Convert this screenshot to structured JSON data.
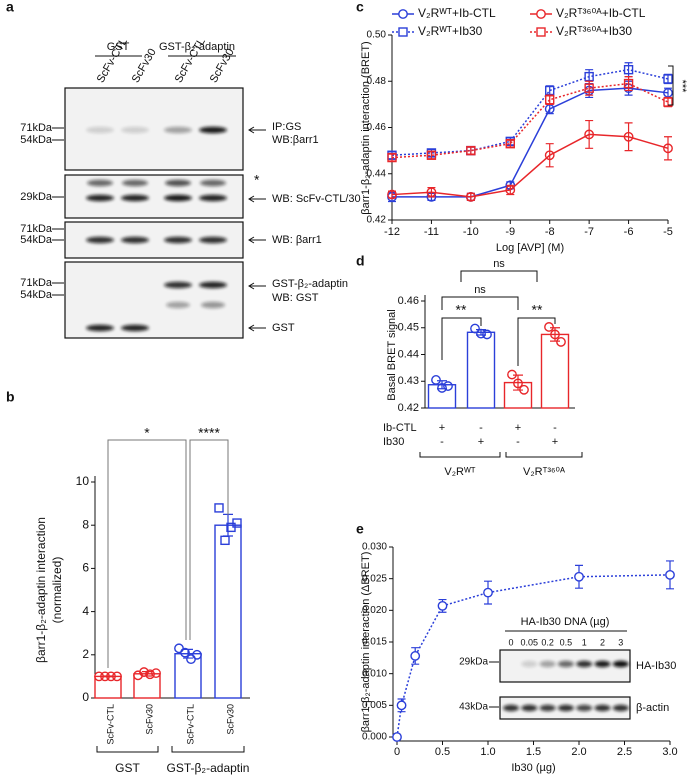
{
  "blot": {
    "panel": "a",
    "groups": [
      "GST",
      "GST-β₂-adaptin"
    ],
    "lanes": [
      "ScFv-CTL",
      "ScFv30",
      "ScFv-CTL",
      "ScFv30"
    ],
    "blot1": {
      "markers": [
        "71kDa",
        "54kDa"
      ],
      "labels": [
        "IP:GS",
        "WB:βarr1"
      ]
    },
    "blot2": {
      "markers": [
        "29kDa"
      ],
      "star": "*",
      "labels": [
        "WB: ScFv-CTL/30"
      ]
    },
    "blot3": {
      "markers": [
        "71kDa",
        "54kDa"
      ],
      "labels": [
        "WB: βarr1"
      ]
    },
    "blot4": {
      "markers": [
        "71kDa",
        "54kDa"
      ],
      "labels": [
        "GST-β₂-adaptin",
        "WB: GST",
        "GST"
      ]
    }
  },
  "chart_data": [
    {
      "panel": "b",
      "type": "bar",
      "y_label": [
        "βarr1-β₂-adaptin interaction",
        "(normalized)"
      ],
      "categories": [
        "ScFv-CTL",
        "ScFv30",
        "ScFv-CTL",
        "ScFv30"
      ],
      "values": [
        1.0,
        1.12,
        2.05,
        8.0
      ],
      "errors": [
        0.02,
        0.1,
        0.2,
        0.5
      ],
      "points": [
        [
          1.0,
          1.0,
          1.0,
          1.0
        ],
        [
          1.05,
          1.2,
          1.1,
          1.15
        ],
        [
          2.3,
          2.1,
          1.8,
          2.0
        ],
        [
          8.8,
          7.3,
          7.9,
          8.1
        ]
      ],
      "colors": [
        "#e8262a",
        "#e8262a",
        "#2b3fd9",
        "#2b3fd9"
      ],
      "groups": [
        "GST",
        "GST-β₂-adaptin"
      ],
      "significance": [
        "*",
        "****"
      ],
      "ylim": [
        0,
        10
      ],
      "yticks": [
        0,
        2,
        4,
        6,
        8,
        10
      ]
    },
    {
      "panel": "c",
      "type": "line",
      "y_label": "βarr1-β₂-adaptin interaction (BRET)",
      "x_label": "Log [AVP] (M)",
      "x": [
        -12,
        -11,
        -10,
        -9,
        -8,
        -7,
        -6,
        -5
      ],
      "series": [
        {
          "name": "V₂Rᵂᵀ+Ib-CTL",
          "color": "#2b3fd9",
          "marker": "circle",
          "dashed": false,
          "values": [
            0.43,
            0.43,
            0.43,
            0.435,
            0.468,
            0.476,
            0.477,
            0.475
          ],
          "errors": [
            0.002,
            0.0015,
            0.0015,
            0.0015,
            0.002,
            0.003,
            0.003,
            0.002
          ]
        },
        {
          "name": "V₂Rᵂᵀ+Ib30",
          "color": "#2b3fd9",
          "marker": "square",
          "dashed": true,
          "values": [
            0.448,
            0.449,
            0.45,
            0.454,
            0.476,
            0.482,
            0.485,
            0.481
          ],
          "errors": [
            0.0015,
            0.0015,
            0.0015,
            0.0015,
            0.002,
            0.003,
            0.003,
            0.002
          ]
        },
        {
          "name": "V₂Rᵀ³⁶⁰ᴬ+Ib-CTL",
          "color": "#e8262a",
          "marker": "circle",
          "dashed": false,
          "values": [
            0.431,
            0.432,
            0.43,
            0.433,
            0.448,
            0.457,
            0.456,
            0.451
          ],
          "errors": [
            0.0015,
            0.002,
            0.0015,
            0.002,
            0.005,
            0.006,
            0.006,
            0.005
          ]
        },
        {
          "name": "V₂Rᵀ³⁶⁰ᴬ+Ib30",
          "color": "#e8262a",
          "marker": "square",
          "dashed": true,
          "values": [
            0.447,
            0.448,
            0.45,
            0.453,
            0.472,
            0.477,
            0.479,
            0.471
          ],
          "errors": [
            0.0015,
            0.0015,
            0.0015,
            0.0015,
            0.002,
            0.003,
            0.003,
            0.002
          ]
        }
      ],
      "annotation": "***",
      "xlim": [
        -12,
        -5
      ],
      "xticks": [
        -12,
        -11,
        -10,
        -9,
        -8,
        -7,
        -6,
        -5
      ],
      "ylim": [
        0.42,
        0.5
      ],
      "yticks": [
        0.42,
        0.44,
        0.46,
        0.48,
        {
          "value": 0.5,
          "label": "0.50"
        }
      ]
    },
    {
      "panel": "d",
      "type": "bar",
      "y_label": "Basal BRET signal",
      "values": [
        0.4287,
        0.4483,
        0.4295,
        0.4475
      ],
      "errors": [
        0.0015,
        0.001,
        0.0028,
        0.0025
      ],
      "points": [
        [
          0.4305,
          0.4275,
          0.4282
        ],
        [
          0.4497,
          0.4478,
          0.4475
        ],
        [
          0.4325,
          0.4292,
          0.4268
        ],
        [
          0.4503,
          0.4475,
          0.4447
        ]
      ],
      "colors": [
        "#2b3fd9",
        "#2b3fd9",
        "#e8262a",
        "#e8262a"
      ],
      "rows": [
        {
          "label": "Ib-CTL",
          "signs": [
            "+",
            "-",
            "+",
            "-"
          ]
        },
        {
          "label": "Ib30",
          "signs": [
            "-",
            "+",
            "-",
            "+"
          ]
        }
      ],
      "groups": [
        "V₂Rᵂᵀ",
        "V₂Rᵀ³⁶⁰ᴬ"
      ],
      "significance": [
        "**",
        "**",
        "ns",
        "ns"
      ],
      "ylim": [
        0.42,
        0.46
      ],
      "yticks": [
        0.42,
        0.43,
        0.44,
        0.45,
        0.46
      ]
    },
    {
      "panel": "e",
      "type": "scatter",
      "y_label": "βarr1-β₂-adaptin interaction (ΔBRET)",
      "x_label": "Ib30 (µg)",
      "color": "#2b3fd9",
      "x": [
        0,
        0.05,
        0.2,
        0.5,
        1,
        2,
        3
      ],
      "values": [
        0.0,
        0.005,
        0.0128,
        0.0207,
        0.0228,
        0.0253,
        0.0256
      ],
      "errors": [
        0.0,
        0.001,
        0.0013,
        0.001,
        0.0018,
        0.0018,
        0.0022
      ],
      "xlim": [
        0,
        3
      ],
      "xticks": [
        0,
        0.5,
        {
          "value": 1,
          "label": "1.0"
        },
        1.5,
        {
          "value": 2,
          "label": "2.0"
        },
        2.5,
        {
          "value": 3,
          "label": "3.0"
        }
      ],
      "ylim": [
        0,
        0.03
      ],
      "yticks": [
        {
          "value": 0,
          "label": "0.000"
        },
        0.005,
        {
          "value": 0.01,
          "label": "0.010"
        },
        0.015,
        {
          "value": 0.02,
          "label": "0.020"
        },
        0.025,
        {
          "value": 0.03,
          "label": "0.030"
        }
      ],
      "inset": {
        "title": "HA-Ib30 DNA (µg)",
        "lanes": [
          "0",
          "0.05",
          "0.2",
          "0.5",
          "1",
          "2",
          "3"
        ],
        "markers": [
          "29kDa",
          "43kDa"
        ],
        "labels": [
          "HA-Ib30",
          "β-actin"
        ]
      }
    }
  ]
}
